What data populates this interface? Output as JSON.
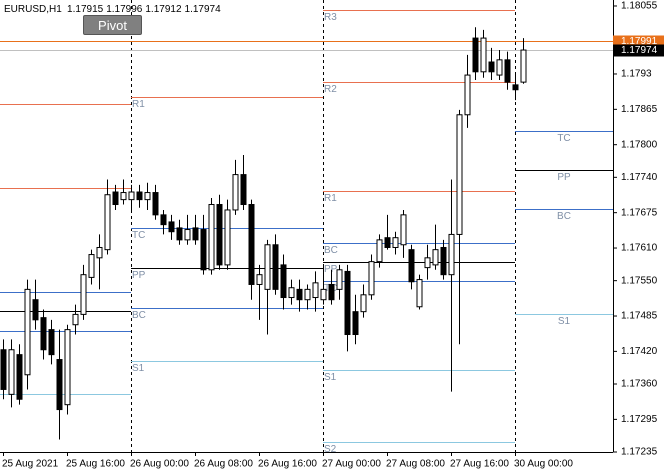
{
  "chart_data": {
    "type": "candlestick",
    "symbol": "EURUSD,H1",
    "ylim": [
      1.17235,
      1.18066
    ],
    "yticks": [
      1.18055,
      1.1793,
      1.17865,
      {
        "value": 1.178,
        "label": "1.17800"
      },
      {
        "value": 1.1774,
        "label": "1.17740"
      },
      1.17675,
      {
        "value": 1.1761,
        "label": "1.17610"
      },
      {
        "value": 1.1755,
        "label": "1.17550"
      },
      1.17485,
      {
        "value": 1.1742,
        "label": "1.17420"
      },
      {
        "value": 1.1736,
        "label": "1.17360"
      },
      1.17295,
      1.17235
    ],
    "ask": 1.17991,
    "ask_color": "#e8701a",
    "bid_color": "#c0c0c0",
    "bull_color": "#ffffff",
    "bear_color": "#000000",
    "days": [
      {
        "pivots": [
          {
            "value": 1.17875,
            "color": "#e8704f"
          },
          {
            "value": 1.17721,
            "color": "#e8704f"
          },
          {
            "value": 1.1753,
            "color": "#3c6fc8"
          },
          {
            "value": 1.17495,
            "color": "#000000"
          },
          {
            "value": 1.17458,
            "color": "#3c6fc8"
          },
          {
            "value": 1.17341,
            "color": "#8cc8e0"
          }
        ],
        "candles": [
          {
            "open": 1.17423,
            "high": 1.17442,
            "low": 1.17332,
            "close": 1.1735,
            "label": "25 Aug 2021"
          },
          {
            "open": 1.17341,
            "high": 1.17442,
            "low": 1.17317,
            "close": 1.17423
          },
          {
            "open": 1.17414,
            "high": 1.17433,
            "low": 1.17322,
            "close": 1.17332
          },
          {
            "open": 1.17377,
            "high": 1.17552,
            "low": 1.1735,
            "close": 1.17534
          },
          {
            "open": 1.17515,
            "high": 1.17552,
            "low": 1.1746,
            "close": 1.17478
          },
          {
            "open": 1.17482,
            "high": 1.17497,
            "low": 1.17405,
            "close": 1.17423
          },
          {
            "open": 1.1746,
            "high": 1.17478,
            "low": 1.17396,
            "close": 1.17414
          },
          {
            "open": 1.17405,
            "high": 1.1746,
            "low": 1.17258,
            "close": 1.17313
          },
          {
            "open": 1.17322,
            "high": 1.17469,
            "low": 1.17304,
            "close": 1.1746,
            "label": "25 Aug 16:00"
          },
          {
            "open": 1.17469,
            "high": 1.17506,
            "low": 1.17451,
            "close": 1.17488
          },
          {
            "open": 1.17488,
            "high": 1.17579,
            "low": 1.17478,
            "close": 1.17561
          },
          {
            "open": 1.17556,
            "high": 1.17607,
            "low": 1.17543,
            "close": 1.17598
          },
          {
            "open": 1.17592,
            "high": 1.17635,
            "low": 1.17534,
            "close": 1.17611
          },
          {
            "open": 1.17607,
            "high": 1.17736,
            "low": 1.17598,
            "close": 1.17708
          },
          {
            "open": 1.17713,
            "high": 1.17726,
            "low": 1.1768,
            "close": 1.1769
          },
          {
            "open": 1.17699,
            "high": 1.17736,
            "low": 1.1769,
            "close": 1.17712
          }
        ]
      },
      {
        "pivots": [
          {
            "name": "R1",
            "value": 1.17888,
            "color": "#e8704f"
          },
          {
            "name": "TC",
            "value": 1.17646,
            "color": "#3c6fc8"
          },
          {
            "name": "PP",
            "value": 1.17574,
            "color": "#000000"
          },
          {
            "name": "BC",
            "value": 1.17499,
            "color": "#3c6fc8"
          },
          {
            "name": "S1",
            "value": 1.17403,
            "color": "#8cc8e0"
          }
        ],
        "candles": [
          {
            "open": 1.17699,
            "high": 1.17726,
            "low": 1.1768,
            "close": 1.17713,
            "label": "26 Aug 00:00"
          },
          {
            "open": 1.17713,
            "high": 1.17726,
            "low": 1.17684,
            "close": 1.17699
          },
          {
            "open": 1.17699,
            "high": 1.1773,
            "low": 1.1768,
            "close": 1.17712
          },
          {
            "open": 1.17712,
            "high": 1.17726,
            "low": 1.17662,
            "close": 1.17671
          },
          {
            "open": 1.17671,
            "high": 1.1768,
            "low": 1.17635,
            "close": 1.17653
          },
          {
            "open": 1.17658,
            "high": 1.17671,
            "low": 1.17625,
            "close": 1.1764
          },
          {
            "open": 1.17647,
            "high": 1.17662,
            "low": 1.17616,
            "close": 1.17625
          },
          {
            "open": 1.17625,
            "high": 1.17671,
            "low": 1.17616,
            "close": 1.17644
          },
          {
            "open": 1.17647,
            "high": 1.17671,
            "low": 1.17616,
            "close": 1.17625,
            "label": "26 Aug 08:00"
          },
          {
            "open": 1.17644,
            "high": 1.17671,
            "low": 1.17561,
            "close": 1.1757
          },
          {
            "open": 1.1757,
            "high": 1.17702,
            "low": 1.17561,
            "close": 1.1769
          },
          {
            "open": 1.1769,
            "high": 1.17708,
            "low": 1.1757,
            "close": 1.17579
          },
          {
            "open": 1.17579,
            "high": 1.17699,
            "low": 1.1757,
            "close": 1.1768
          },
          {
            "open": 1.1768,
            "high": 1.17772,
            "low": 1.17671,
            "close": 1.17745
          },
          {
            "open": 1.17745,
            "high": 1.17781,
            "low": 1.1768,
            "close": 1.1769
          },
          {
            "open": 1.1769,
            "high": 1.17699,
            "low": 1.17515,
            "close": 1.17543
          },
          {
            "open": 1.17543,
            "high": 1.17579,
            "low": 1.17478,
            "close": 1.17561,
            "label": "26 Aug 16:00"
          },
          {
            "open": 1.17534,
            "high": 1.17625,
            "low": 1.17451,
            "close": 1.17616
          },
          {
            "open": 1.17616,
            "high": 1.17635,
            "low": 1.17524,
            "close": 1.17534
          },
          {
            "open": 1.17579,
            "high": 1.17598,
            "low": 1.17497,
            "close": 1.17519
          },
          {
            "open": 1.17519,
            "high": 1.17552,
            "low": 1.17506,
            "close": 1.17537
          },
          {
            "open": 1.17534,
            "high": 1.17552,
            "low": 1.17493,
            "close": 1.17515
          },
          {
            "open": 1.17515,
            "high": 1.17543,
            "low": 1.17497,
            "close": 1.17534
          },
          {
            "open": 1.17519,
            "high": 1.17567,
            "low": 1.17493,
            "close": 1.17546
          }
        ]
      },
      {
        "pivots": [
          {
            "name": "R3",
            "value": 1.18048,
            "color": "#e8704f"
          },
          {
            "name": "R2",
            "value": 1.17915,
            "color": "#e8704f"
          },
          {
            "name": "R1",
            "value": 1.17715,
            "color": "#e8704f"
          },
          {
            "name": "BC",
            "value": 1.1762,
            "color": "#3c6fc8"
          },
          {
            "name": "PP",
            "value": 1.17585,
            "color": "#000000"
          },
          {
            "name": "TC",
            "value": 1.1755,
            "color": "#3c6fc8"
          },
          {
            "name": "S1",
            "value": 1.17385,
            "color": "#8cc8e0"
          },
          {
            "name": "S2",
            "value": 1.17254,
            "color": "#8cc8e0"
          }
        ],
        "candles": [
          {
            "open": 1.17515,
            "high": 1.17579,
            "low": 1.17506,
            "close": 1.17534,
            "label": "27 Aug 00:00"
          },
          {
            "open": 1.17543,
            "high": 1.1757,
            "low": 1.17506,
            "close": 1.17515
          },
          {
            "open": 1.17534,
            "high": 1.17579,
            "low": 1.17515,
            "close": 1.1757
          },
          {
            "open": 1.17567,
            "high": 1.17579,
            "low": 1.1742,
            "close": 1.17451
          },
          {
            "open": 1.17493,
            "high": 1.17524,
            "low": 1.17433,
            "close": 1.17451
          },
          {
            "open": 1.17493,
            "high": 1.17543,
            "low": 1.17482,
            "close": 1.17524
          },
          {
            "open": 1.17524,
            "high": 1.17598,
            "low": 1.17515,
            "close": 1.17585
          },
          {
            "open": 1.17585,
            "high": 1.17635,
            "low": 1.17574,
            "close": 1.17625
          },
          {
            "open": 1.17629,
            "high": 1.17671,
            "low": 1.17607,
            "close": 1.17611,
            "label": "27 Aug 08:00"
          },
          {
            "open": 1.17611,
            "high": 1.1764,
            "low": 1.17598,
            "close": 1.17629
          },
          {
            "open": 1.17616,
            "high": 1.1768,
            "low": 1.17592,
            "close": 1.17671
          },
          {
            "open": 1.17607,
            "high": 1.17616,
            "low": 1.17534,
            "close": 1.17548
          },
          {
            "open": 1.17502,
            "high": 1.17561,
            "low": 1.17497,
            "close": 1.17552
          },
          {
            "open": 1.17574,
            "high": 1.17616,
            "low": 1.17552,
            "close": 1.17592
          },
          {
            "open": 1.17579,
            "high": 1.17653,
            "low": 1.1757,
            "close": 1.17607
          },
          {
            "open": 1.17611,
            "high": 1.17625,
            "low": 1.17552,
            "close": 1.17561
          },
          {
            "open": 1.17561,
            "high": 1.17736,
            "low": 1.17346,
            "close": 1.17635,
            "label": "27 Aug 16:00"
          },
          {
            "open": 1.17635,
            "high": 1.17864,
            "low": 1.17433,
            "close": 1.17855
          },
          {
            "open": 1.17855,
            "high": 1.17965,
            "low": 1.17831,
            "close": 1.17928
          },
          {
            "open": 1.17996,
            "high": 1.18016,
            "low": 1.17919,
            "close": 1.17934
          },
          {
            "open": 1.17934,
            "high": 1.18011,
            "low": 1.17923,
            "close": 1.17996
          },
          {
            "open": 1.17952,
            "high": 1.17978,
            "low": 1.17919,
            "close": 1.17934
          },
          {
            "open": 1.17928,
            "high": 1.17974,
            "low": 1.17919,
            "close": 1.17956
          },
          {
            "open": 1.17956,
            "high": 1.17971,
            "low": 1.17901,
            "close": 1.17915
          }
        ]
      },
      {
        "pivots": [
          {
            "name": "TC",
            "value": 1.17825,
            "color": "#3c6fc8"
          },
          {
            "name": "PP",
            "value": 1.17754,
            "color": "#000000"
          },
          {
            "name": "BC",
            "value": 1.17682,
            "color": "#3c6fc8"
          },
          {
            "name": "S1",
            "value": 1.17488,
            "color": "#8cc8e0"
          }
        ],
        "candles": [
          {
            "open": 1.1791,
            "high": 1.17928,
            "low": 1.17882,
            "close": 1.17901,
            "label": "30 Aug 00:00"
          },
          {
            "open": 1.17915,
            "high": 1.17996,
            "low": 1.17912,
            "close": 1.17974
          }
        ]
      }
    ]
  },
  "button": {
    "label": "Pivot"
  }
}
